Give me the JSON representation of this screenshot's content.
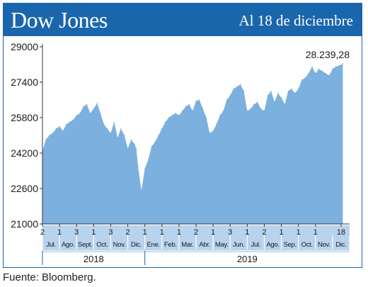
{
  "header": {
    "title": "Dow Jones",
    "date": "Al 18 de diciembre"
  },
  "colors": {
    "brand": "#1a66ad",
    "area": "#7cb0de",
    "band": "#b8d3ed"
  },
  "source": "Fuente: Bloomberg.",
  "chart_data": {
    "type": "area",
    "title": "Dow Jones",
    "subtitle": "Al 18 de diciembre",
    "ylim": [
      21000,
      29000
    ],
    "yticks": [
      29000,
      27400,
      25800,
      24200,
      22600,
      21000
    ],
    "ytick_labels": [
      "29000",
      "27400",
      "25800",
      "24200",
      "22600",
      "21000"
    ],
    "xlim": [
      0,
      18
    ],
    "grid": false,
    "last_value_label": "28.239,28",
    "day_ticks": [
      {
        "pos": 0,
        "label": "2"
      },
      {
        "pos": 1,
        "label": "1"
      },
      {
        "pos": 2,
        "label": "3"
      },
      {
        "pos": 3,
        "label": "1"
      },
      {
        "pos": 4,
        "label": "3"
      },
      {
        "pos": 5,
        "label": "2"
      },
      {
        "pos": 6,
        "label": "1"
      },
      {
        "pos": 7,
        "label": "1"
      },
      {
        "pos": 8,
        "label": "1"
      },
      {
        "pos": 9,
        "label": "2"
      },
      {
        "pos": 10,
        "label": "1"
      },
      {
        "pos": 11,
        "label": "3"
      },
      {
        "pos": 12,
        "label": "1"
      },
      {
        "pos": 13,
        "label": "2"
      },
      {
        "pos": 14,
        "label": "1"
      },
      {
        "pos": 15,
        "label": "1"
      },
      {
        "pos": 16,
        "label": "1"
      },
      {
        "pos": 17.5,
        "label": "18"
      }
    ],
    "months": [
      "Jul.",
      "Ago.",
      "Sept.",
      "Oct.",
      "Nov.",
      "Dic.",
      "Ene.",
      "Feb.",
      "Mar.",
      "Abr.",
      "May.",
      "Jun.",
      "Jul.",
      "Ago.",
      "Sep.",
      "Oct.",
      "Nov.",
      "Dic."
    ],
    "years": [
      {
        "label": "2018",
        "start": 0,
        "end": 6
      },
      {
        "label": "2019",
        "start": 6,
        "end": 18
      }
    ],
    "series": [
      {
        "x": [
          0,
          0.2,
          0.4,
          0.6,
          0.8,
          1.0,
          1.2,
          1.4,
          1.6,
          1.8,
          2.0,
          2.2,
          2.4,
          2.6,
          2.8,
          3.0,
          3.2,
          3.4,
          3.6,
          3.8,
          4.0,
          4.2,
          4.4,
          4.6,
          4.8,
          5.0,
          5.2,
          5.4,
          5.5,
          5.6,
          5.8,
          6.0,
          6.2,
          6.4,
          6.6,
          6.8,
          7.0,
          7.2,
          7.4,
          7.6,
          7.8,
          8.0,
          8.2,
          8.4,
          8.6,
          8.8,
          9.0,
          9.2,
          9.4,
          9.6,
          9.8,
          10.0,
          10.2,
          10.4,
          10.6,
          10.8,
          11.0,
          11.2,
          11.4,
          11.6,
          11.8,
          12.0,
          12.2,
          12.4,
          12.6,
          12.8,
          13.0,
          13.2,
          13.4,
          13.6,
          13.8,
          14.0,
          14.2,
          14.4,
          14.6,
          14.8,
          15.0,
          15.2,
          15.4,
          15.6,
          15.8,
          16.0,
          16.2,
          16.4,
          16.6,
          16.8,
          17.0,
          17.2,
          17.4,
          17.6
        ],
        "values": [
          24300,
          24800,
          25000,
          25100,
          25300,
          25400,
          25200,
          25500,
          25600,
          25700,
          25900,
          26000,
          26300,
          26400,
          26000,
          26200,
          26450,
          26000,
          25500,
          25300,
          25100,
          25600,
          24900,
          25300,
          25000,
          24400,
          24800,
          24600,
          24400,
          23600,
          22500,
          23500,
          23900,
          24500,
          24700,
          25000,
          25300,
          25600,
          25800,
          25900,
          26000,
          25900,
          26100,
          26300,
          26400,
          26100,
          26550,
          26600,
          26200,
          25800,
          25100,
          25200,
          25500,
          25900,
          26100,
          26600,
          26800,
          27100,
          27200,
          27300,
          27000,
          26100,
          26200,
          26400,
          26500,
          26200,
          26100,
          26800,
          27000,
          26500,
          26900,
          26700,
          26400,
          27000,
          27100,
          26900,
          27100,
          27500,
          27600,
          27800,
          28100,
          27800,
          28000,
          27900,
          27800,
          27700,
          28000,
          28100,
          28150,
          28239.28
        ]
      }
    ]
  }
}
